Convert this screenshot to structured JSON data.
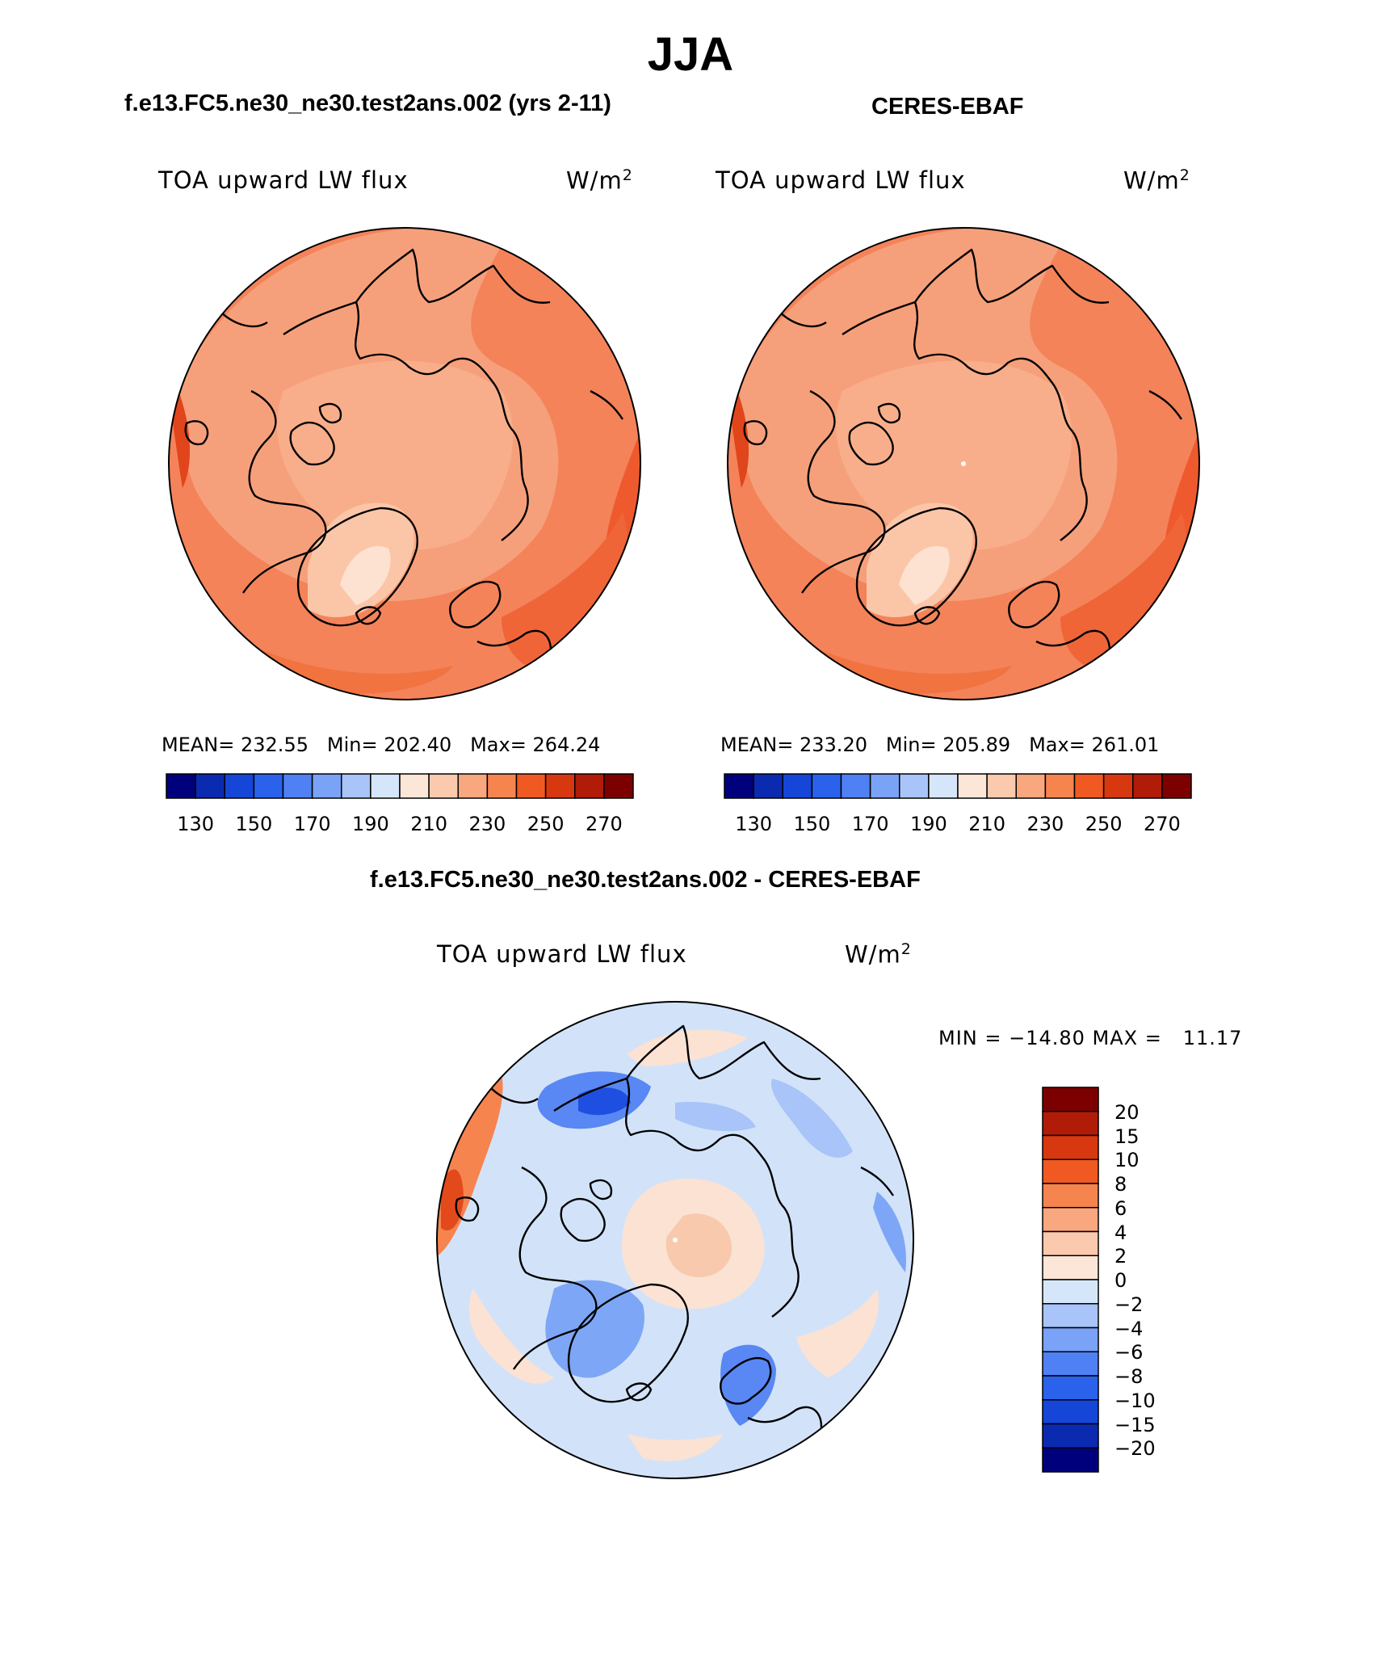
{
  "figure": {
    "title": "JJA",
    "test_title": "f.e13.FC5.ne30_ne30.test2ans.002 (yrs 2-11)",
    "obs_title": "CERES-EBAF",
    "diff_title": "f.e13.FC5.ne30_ne30.test2ans.002 - CERES-EBAF"
  },
  "panels": [
    {
      "variable": "TOA upward LW flux",
      "units": "W/m",
      "units_exp": "2",
      "mean_label": "MEAN=",
      "mean": "232.55",
      "min_label": "Min=",
      "min": "202.40",
      "max_label": "Max=",
      "max": "264.24"
    },
    {
      "variable": "TOA upward LW flux",
      "units": "W/m",
      "units_exp": "2",
      "mean_label": "MEAN=",
      "mean": "233.20",
      "min_label": "Min=",
      "min": "205.89",
      "max_label": "Max=",
      "max": "261.01"
    },
    {
      "variable": "TOA upward LW flux",
      "units": "W/m",
      "units_exp": "2",
      "minmax_text": "MIN = −14.80 MAX =   11.17"
    }
  ],
  "colorbar_abs": {
    "colors": [
      "#00007d",
      "#0a2ab0",
      "#1546d8",
      "#2a62ec",
      "#4f80f4",
      "#7aa2f6",
      "#a8c4f8",
      "#d6e6fa",
      "#fce6d8",
      "#fbc9ad",
      "#f9a77e",
      "#f6844f",
      "#f05a22",
      "#d8380f",
      "#b01c08",
      "#7d0000"
    ],
    "tick_labels": [
      "130",
      "150",
      "170",
      "190",
      "210",
      "230",
      "250",
      "270"
    ]
  },
  "colorbar_diff": {
    "colors": [
      "#7d0000",
      "#b01c08",
      "#d8380f",
      "#f05a22",
      "#f6844f",
      "#f9a77e",
      "#fbc9ad",
      "#fce6d8",
      "#d6e6fa",
      "#a8c4f8",
      "#7aa2f6",
      "#4f80f4",
      "#2a62ec",
      "#1546d8",
      "#0a2ab0",
      "#00007d"
    ],
    "tick_labels": [
      "20",
      "15",
      "10",
      "8",
      "6",
      "4",
      "2",
      "0",
      "−2",
      "−4",
      "−6",
      "−8",
      "−10",
      "−15",
      "−20"
    ]
  }
}
